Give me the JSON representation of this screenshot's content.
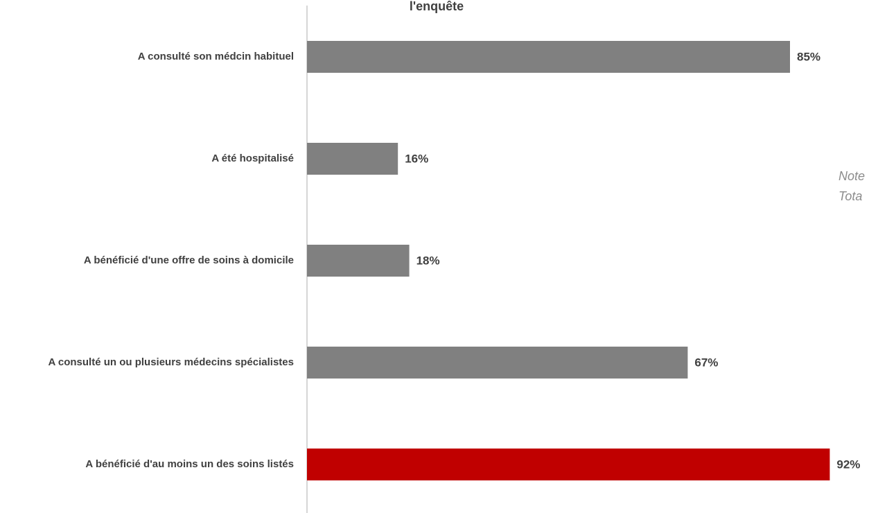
{
  "chart_data": {
    "type": "barh",
    "title": "l'enquête",
    "categories": [
      "A consulté son médcin habituel",
      "A été hospitalisé",
      "A bénéficié d'une offre de soins à domicile",
      "A consulté un ou plusieurs médecins spécialistes",
      "A bénéficié d'au moins un des soins listés"
    ],
    "values": [
      85,
      16,
      18,
      67,
      92
    ],
    "value_labels": [
      "85%",
      "16%",
      "18%",
      "67%",
      "92%"
    ],
    "colors": [
      "#808080",
      "#808080",
      "#808080",
      "#808080",
      "#c00000"
    ],
    "xlim": [
      0,
      100
    ],
    "annotations": [
      "Note",
      "Tota"
    ]
  }
}
